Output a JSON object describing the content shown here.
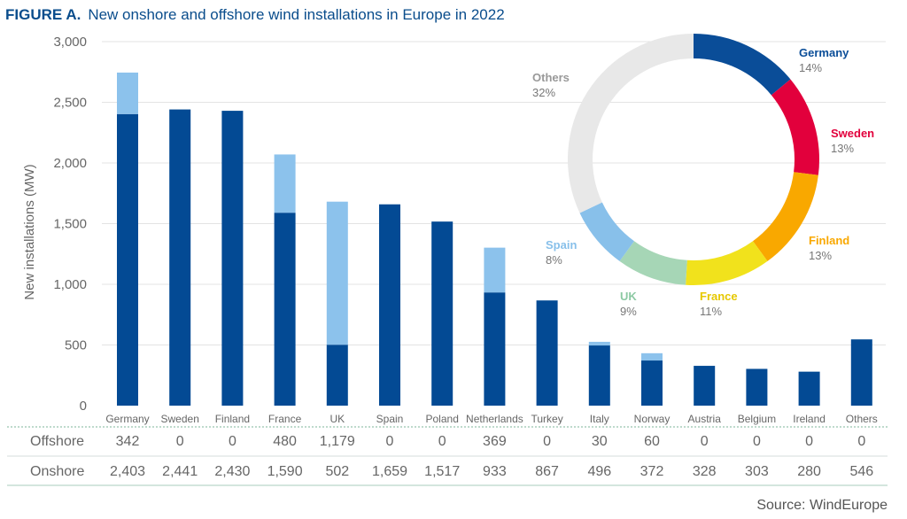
{
  "title_prefix": "FIGURE A.",
  "title": "New onshore and offshore wind installations in Europe in 2022",
  "source": "Source: WindEurope",
  "colors": {
    "onshore": "#034a94",
    "offshore": "#8cc2ec",
    "title": "#0a4d8c"
  },
  "chart_data": [
    {
      "type": "bar",
      "stacked": true,
      "ylabel": "New installations (MW)",
      "ylim": [
        0,
        3000
      ],
      "yticks": [
        "0",
        "500",
        "1,000",
        "1,500",
        "2,000",
        "2,500",
        "3,000"
      ],
      "grid": true,
      "categories": [
        "Germany",
        "Sweden",
        "Finland",
        "France",
        "UK",
        "Spain",
        "Poland",
        "Netherlands",
        "Turkey",
        "Italy",
        "Norway",
        "Austria",
        "Belgium",
        "Ireland",
        "Others"
      ],
      "series": [
        {
          "name": "Onshore",
          "values": [
            2403,
            2441,
            2430,
            1590,
            502,
            1659,
            1517,
            933,
            867,
            496,
            372,
            328,
            303,
            280,
            546
          ],
          "labels": [
            "2,403",
            "2,441",
            "2,430",
            "1,590",
            "502",
            "1,659",
            "1,517",
            "933",
            "867",
            "496",
            "372",
            "328",
            "303",
            "280",
            "546"
          ]
        },
        {
          "name": "Offshore",
          "values": [
            342,
            0,
            0,
            480,
            1179,
            0,
            0,
            369,
            0,
            30,
            60,
            0,
            0,
            0,
            0
          ],
          "labels": [
            "342",
            "0",
            "0",
            "480",
            "1,179",
            "0",
            "0",
            "369",
            "0",
            "30",
            "60",
            "0",
            "0",
            "0",
            "0"
          ]
        }
      ]
    },
    {
      "type": "pie",
      "donut": true,
      "slices": [
        {
          "label": "Germany",
          "value": 14,
          "text": "14%",
          "color": "#0a4d98"
        },
        {
          "label": "Sweden",
          "value": 13,
          "text": "13%",
          "color": "#e2003c"
        },
        {
          "label": "Finland",
          "value": 13,
          "text": "13%",
          "color": "#f9a800"
        },
        {
          "label": "France",
          "value": 11,
          "text": "11%",
          "color": "#f1e21c"
        },
        {
          "label": "UK",
          "value": 9,
          "text": "9%",
          "color": "#a6d6b6"
        },
        {
          "label": "Spain",
          "value": 8,
          "text": "8%",
          "color": "#88c0ea"
        },
        {
          "label": "Others",
          "value": 32,
          "text": "32%",
          "color": "#e8e8e8"
        }
      ]
    }
  ]
}
